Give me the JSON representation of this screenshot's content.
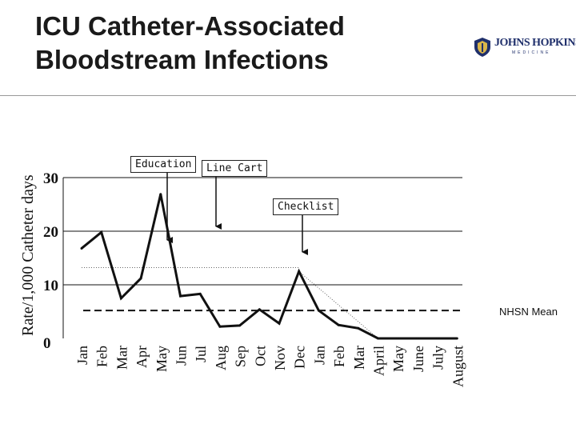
{
  "header": {
    "title_line1": "ICU Catheter-Associated",
    "title_line2": "Bloodstream Infections"
  },
  "logo": {
    "name": "JOHNS HOPKINS",
    "sub": "MEDICINE",
    "color": "#1f2f6b",
    "icon": "shield-icon"
  },
  "colors": {
    "line": "#111111",
    "mean": "#111111",
    "dotted": "#666666"
  },
  "chart_data": {
    "type": "line",
    "title": "ICU Catheter-Associated Bloodstream Infections",
    "ylabel": "Rate/1,000 Catheter days",
    "xlabel": "",
    "ylim": [
      0,
      30
    ],
    "yticks": [
      0,
      10,
      20,
      30
    ],
    "grid": "horizontal",
    "categories": [
      "Jan",
      "Feb",
      "Mar",
      "Apr",
      "May",
      "Jun",
      "Jul",
      "Aug",
      "Sep",
      "Oct",
      "Nov",
      "Dec",
      "Jan",
      "Feb",
      "Mar",
      "April",
      "May",
      "June",
      "July",
      "August"
    ],
    "series": [
      {
        "values": [
          16.8,
          19.8,
          7.5,
          11.2,
          26.9,
          7.9,
          8.3,
          2.2,
          2.4,
          5.4,
          2.8,
          12.5,
          5.2,
          2.5,
          1.9,
          0,
          0,
          0,
          0,
          0
        ]
      }
    ],
    "mean": {
      "label": "NHSN Mean",
      "value": 5.2
    },
    "dotted_line": {
      "value": 13.2
    },
    "annotations": [
      {
        "label": "Education",
        "index": 4
      },
      {
        "label": "Line Cart",
        "index": 7
      },
      {
        "label": "Checklist",
        "index": 11
      }
    ]
  }
}
